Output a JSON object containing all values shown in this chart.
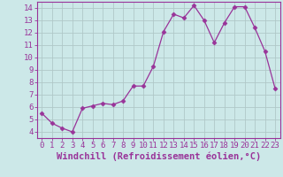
{
  "x": [
    0,
    1,
    2,
    3,
    4,
    5,
    6,
    7,
    8,
    9,
    10,
    11,
    12,
    13,
    14,
    15,
    16,
    17,
    18,
    19,
    20,
    21,
    22,
    23
  ],
  "y": [
    5.5,
    4.7,
    4.3,
    4.0,
    5.9,
    6.1,
    6.3,
    6.2,
    6.5,
    7.7,
    7.7,
    9.3,
    12.1,
    13.5,
    13.2,
    14.2,
    13.0,
    11.2,
    12.8,
    14.1,
    14.1,
    12.4,
    10.5,
    7.5
  ],
  "line_color": "#993399",
  "marker": "D",
  "marker_size": 2.5,
  "bg_color": "#cce8e8",
  "grid_color": "#b0c8c8",
  "xlabel": "Windchill (Refroidissement éolien,°C)",
  "xlim": [
    -0.5,
    23.5
  ],
  "ylim": [
    3.5,
    14.5
  ],
  "yticks": [
    4,
    5,
    6,
    7,
    8,
    9,
    10,
    11,
    12,
    13,
    14
  ],
  "xticks": [
    0,
    1,
    2,
    3,
    4,
    5,
    6,
    7,
    8,
    9,
    10,
    11,
    12,
    13,
    14,
    15,
    16,
    17,
    18,
    19,
    20,
    21,
    22,
    23
  ],
  "tick_color": "#993399",
  "label_color": "#993399",
  "spine_color": "#993399",
  "tick_fontsize": 6.5,
  "xlabel_fontsize": 7.5
}
